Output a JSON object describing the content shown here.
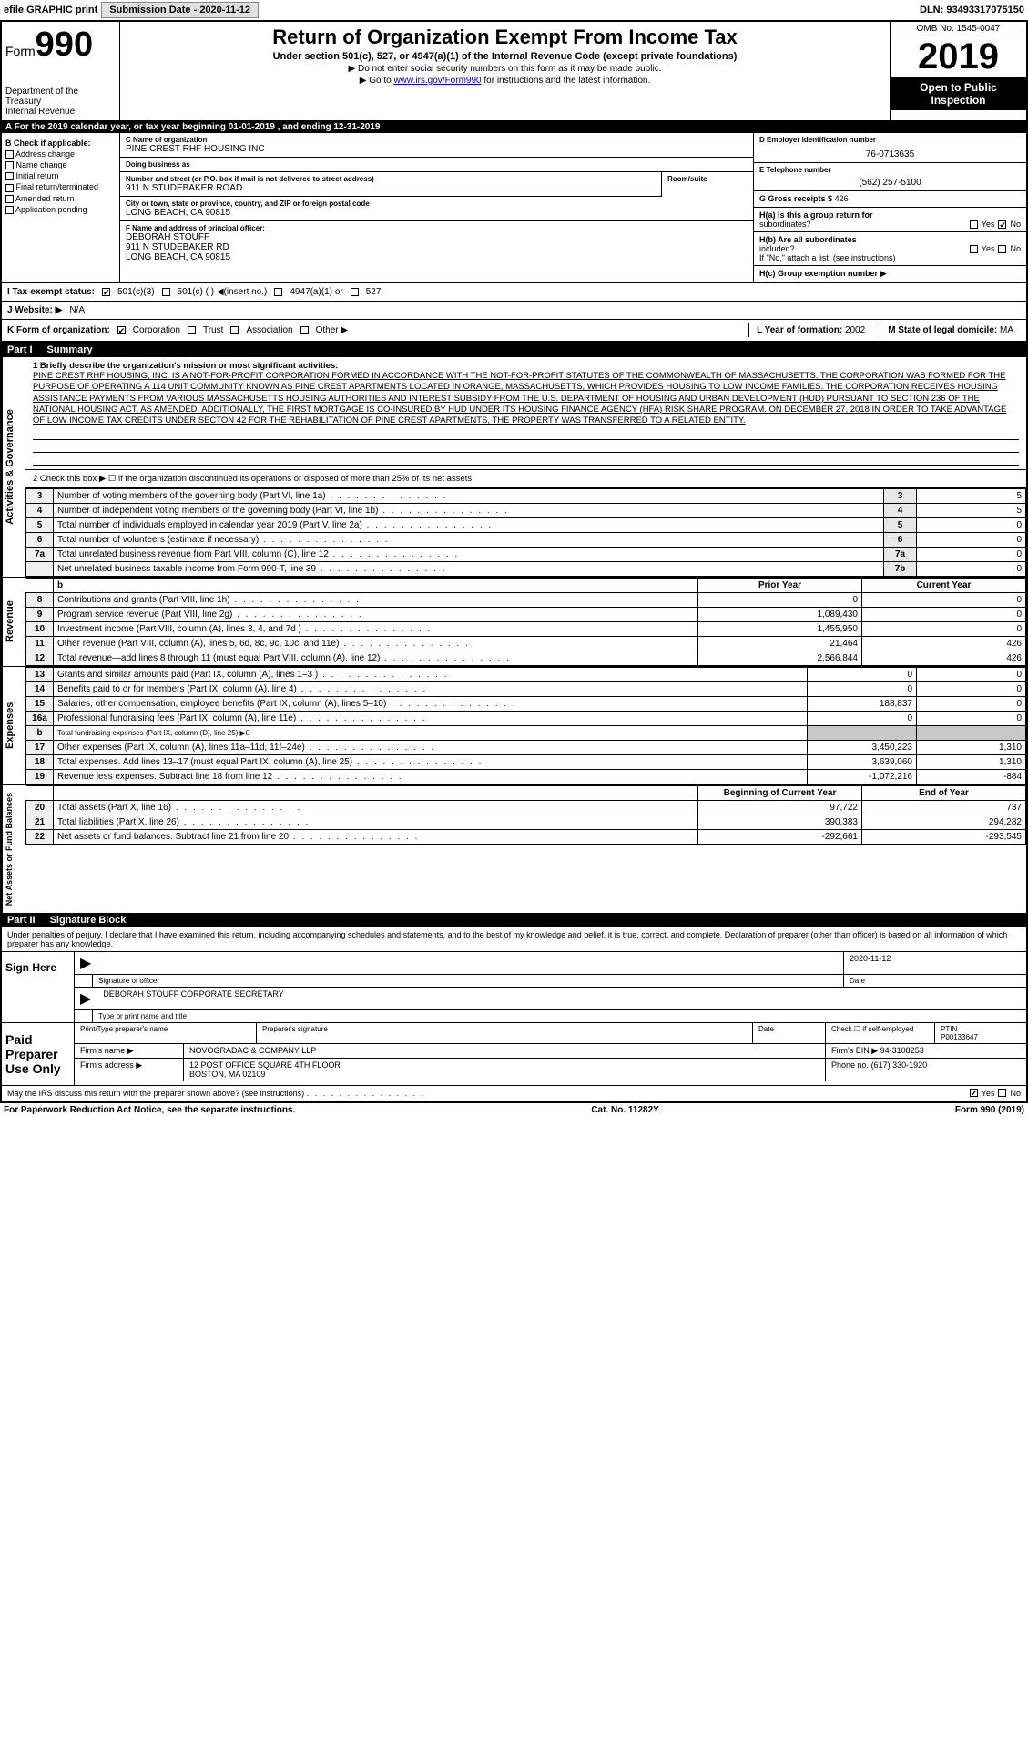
{
  "topbar": {
    "efile": "efile GRAPHIC print",
    "submission_label": "Submission Date - 2020-11-12",
    "dln": "DLN: 93493317075150"
  },
  "header": {
    "form_word": "Form",
    "form_num": "990",
    "dept1": "Department of the",
    "dept2": "Treasury",
    "dept3": "Internal Revenue",
    "title": "Return of Organization Exempt From Income Tax",
    "subtitle": "Under section 501(c), 527, or 4947(a)(1) of the Internal Revenue Code (except private foundations)",
    "note1": "▶ Do not enter social security numbers on this form as it may be made public.",
    "note2_pre": "▶ Go to ",
    "note2_link": "www.irs.gov/Form990",
    "note2_post": " for instructions and the latest information.",
    "omb": "OMB No. 1545-0047",
    "year": "2019",
    "inspect1": "Open to Public",
    "inspect2": "Inspection"
  },
  "taxyear": {
    "text_pre": "A   For the 2019 calendar year, or tax year beginning ",
    "begin": "01-01-2019",
    "mid": " , and ending ",
    "end": "12-31-2019"
  },
  "colB": {
    "title": "B Check if applicable:",
    "opts": [
      "Address change",
      "Name change",
      "Initial return",
      "Final return/terminated",
      "Amended return",
      "Application pending"
    ]
  },
  "colC": {
    "name_lbl": "C Name of organization",
    "name": "PINE CREST RHF HOUSING INC",
    "dba_lbl": "Doing business as",
    "dba": "",
    "addr_lbl": "Number and street (or P.O. box if mail is not delivered to street address)",
    "addr": "911 N STUDEBAKER ROAD",
    "room_lbl": "Room/suite",
    "room": "",
    "city_lbl": "City or town, state or province, country, and ZIP or foreign postal code",
    "city": "LONG BEACH, CA  90815",
    "f_lbl": "F  Name and address of principal officer:",
    "f_name": "DEBORAH STOUFF",
    "f_addr1": "911 N STUDEBAKER RD",
    "f_addr2": "LONG BEACH, CA  90815"
  },
  "colD": {
    "ein_lbl": "D Employer identification number",
    "ein": "76-0713635",
    "tel_lbl": "E Telephone number",
    "tel": "(562) 257-5100",
    "gross_lbl": "G Gross receipts $",
    "gross": "426",
    "ha_lbl": "H(a)  Is this a group return for",
    "ha_sub": "subordinates?",
    "hb_lbl": "H(b)  Are all subordinates",
    "hb_sub": "included?",
    "hb_note": "If \"No,\" attach a list. (see instructions)",
    "hc_lbl": "H(c)  Group exemption number ▶",
    "yes": "Yes",
    "no": "No"
  },
  "rowI": {
    "lbl": "I   Tax-exempt status:",
    "o1": "501(c)(3)",
    "o2": "501(c) (  ) ◀(insert no.)",
    "o3": "4947(a)(1) or",
    "o4": "527"
  },
  "rowJ": {
    "lbl": "J   Website: ▶",
    "val": "N/A"
  },
  "rowK": {
    "lbl": "K Form of organization:",
    "o1": "Corporation",
    "o2": "Trust",
    "o3": "Association",
    "o4": "Other ▶",
    "l_lbl": "L Year of formation:",
    "l_val": "2002",
    "m_lbl": "M State of legal domicile:",
    "m_val": "MA"
  },
  "part1": {
    "header_part": "Part I",
    "header_title": "Summary",
    "line1_lbl": "1   Briefly describe the organization's mission or most significant activities:",
    "mission": "PINE CREST RHF HOUSING, INC. IS A NOT-FOR-PROFIT CORPORATION FORMED IN ACCORDANCE WITH THE NOT-FOR-PROFIT STATUTES OF THE COMMONWEALTH OF MASSACHUSETTS. THE CORPORATION WAS FORMED FOR THE PURPOSE OF OPERATING A 114 UNIT COMMUNITY KNOWN AS PINE CREST APARTMENTS LOCATED IN ORANGE, MASSACHUSETTS, WHICH PROVIDES HOUSING TO LOW INCOME FAMILIES. THE CORPORATION RECEIVES HOUSING ASSISTANCE PAYMENTS FROM VARIOUS MASSACHUSETTS HOUSING AUTHORITIES AND INTEREST SUBSIDY FROM THE U.S. DEPARTMENT OF HOUSING AND URBAN DEVELOPMENT (HUD) PURSUANT TO SECTION 236 OF THE NATIONAL HOUSING ACT, AS AMENDED. ADDITIONALLY, THE FIRST MORTGAGE IS CO-INSURED BY HUD UNDER ITS HOUSING FINANCE AGENCY (HFA) RISK SHARE PROGRAM. ON DECEMBER 27, 2018 IN ORDER TO TAKE ADVANTAGE OF LOW INCOME TAX CREDITS UNDER SECTON 42 FOR THE REHABILITATION OF PINE CREST APARTMENTS, THE PROPERTY WAS TRANSFERRED TO A RELATED ENTITY.",
    "line2": "2   Check this box ▶ ☐ if the organization discontinued its operations or disposed of more than 25% of its net assets.",
    "side_ag": "Activities & Governance",
    "side_rev": "Revenue",
    "side_exp": "Expenses",
    "side_na": "Net Assets or Fund Balances",
    "rows_ag": [
      {
        "n": "3",
        "d": "Number of voting members of the governing body (Part VI, line 1a)",
        "box": "3",
        "v": "5"
      },
      {
        "n": "4",
        "d": "Number of independent voting members of the governing body (Part VI, line 1b)",
        "box": "4",
        "v": "5"
      },
      {
        "n": "5",
        "d": "Total number of individuals employed in calendar year 2019 (Part V, line 2a)",
        "box": "5",
        "v": "0"
      },
      {
        "n": "6",
        "d": "Total number of volunteers (estimate if necessary)",
        "box": "6",
        "v": "0"
      },
      {
        "n": "7a",
        "d": "Total unrelated business revenue from Part VIII, column (C), line 12",
        "box": "7a",
        "v": "0"
      },
      {
        "n": "",
        "d": "Net unrelated business taxable income from Form 990-T, line 39",
        "box": "7b",
        "v": "0"
      }
    ],
    "col_prior": "Prior Year",
    "col_current": "Current Year",
    "rows_rev": [
      {
        "n": "8",
        "d": "Contributions and grants (Part VIII, line 1h)",
        "p": "0",
        "c": "0"
      },
      {
        "n": "9",
        "d": "Program service revenue (Part VIII, line 2g)",
        "p": "1,089,430",
        "c": "0"
      },
      {
        "n": "10",
        "d": "Investment income (Part VIII, column (A), lines 3, 4, and 7d )",
        "p": "1,455,950",
        "c": "0"
      },
      {
        "n": "11",
        "d": "Other revenue (Part VIII, column (A), lines 5, 6d, 8c, 9c, 10c, and 11e)",
        "p": "21,464",
        "c": "426"
      },
      {
        "n": "12",
        "d": "Total revenue—add lines 8 through 11 (must equal Part VIII, column (A), line 12)",
        "p": "2,566,844",
        "c": "426"
      }
    ],
    "rows_exp": [
      {
        "n": "13",
        "d": "Grants and similar amounts paid (Part IX, column (A), lines 1–3 )",
        "p": "0",
        "c": "0"
      },
      {
        "n": "14",
        "d": "Benefits paid to or for members (Part IX, column (A), line 4)",
        "p": "0",
        "c": "0"
      },
      {
        "n": "15",
        "d": "Salaries, other compensation, employee benefits (Part IX, column (A), lines 5–10)",
        "p": "188,837",
        "c": "0"
      },
      {
        "n": "16a",
        "d": "Professional fundraising fees (Part IX, column (A), line 11e)",
        "p": "0",
        "c": "0"
      }
    ],
    "row16b": {
      "n": "b",
      "d": "Total fundraising expenses (Part IX, column (D), line 25) ▶0"
    },
    "rows_exp2": [
      {
        "n": "17",
        "d": "Other expenses (Part IX, column (A), lines 11a–11d, 11f–24e)",
        "p": "3,450,223",
        "c": "1,310"
      },
      {
        "n": "18",
        "d": "Total expenses. Add lines 13–17 (must equal Part IX, column (A), line 25)",
        "p": "3,639,060",
        "c": "1,310"
      },
      {
        "n": "19",
        "d": "Revenue less expenses. Subtract line 18 from line 12",
        "p": "-1,072,216",
        "c": "-884"
      }
    ],
    "col_begin": "Beginning of Current Year",
    "col_end": "End of Year",
    "rows_na": [
      {
        "n": "20",
        "d": "Total assets (Part X, line 16)",
        "p": "97,722",
        "c": "737"
      },
      {
        "n": "21",
        "d": "Total liabilities (Part X, line 26)",
        "p": "390,383",
        "c": "294,282"
      },
      {
        "n": "22",
        "d": "Net assets or fund balances. Subtract line 21 from line 20",
        "p": "-292,661",
        "c": "-293,545"
      }
    ]
  },
  "part2": {
    "header_part": "Part II",
    "header_title": "Signature Block",
    "intro": "Under penalties of perjury, I declare that I have examined this return, including accompanying schedules and statements, and to the best of my knowledge and belief, it is true, correct, and complete. Declaration of preparer (other than officer) is based on all information of which preparer has any knowledge.",
    "sign_here": "Sign Here",
    "sig_officer_lbl": "Signature of officer",
    "sig_date": "2020-11-12",
    "sig_date_lbl": "Date",
    "sig_name": "DEBORAH STOUFF  CORPORATE SECRETARY",
    "sig_name_lbl": "Type or print name and title",
    "paid": "Paid Preparer Use Only",
    "prep_name_lbl": "Print/Type preparer's name",
    "prep_sig_lbl": "Preparer's signature",
    "prep_date_lbl": "Date",
    "prep_self_lbl": "Check ☐ if self-employed",
    "prep_ptin_lbl": "PTIN",
    "prep_ptin": "P00133647",
    "firm_name_lbl": "Firm's name    ▶",
    "firm_name": "NOVOGRADAC & COMPANY LLP",
    "firm_ein_lbl": "Firm's EIN ▶",
    "firm_ein": "94-3108253",
    "firm_addr_lbl": "Firm's address ▶",
    "firm_addr1": "12 POST OFFICE SQUARE 4TH FLOOR",
    "firm_addr2": "BOSTON, MA  02109",
    "firm_phone_lbl": "Phone no.",
    "firm_phone": "(617) 330-1920",
    "discuss": "May the IRS discuss this return with the preparer shown above? (see instructions)",
    "yes": "Yes",
    "no": "No"
  },
  "footer": {
    "left": "For Paperwork Reduction Act Notice, see the separate instructions.",
    "mid": "Cat. No. 11282Y",
    "right": "Form 990 (2019)"
  },
  "colors": {
    "black": "#000000",
    "white": "#ffffff",
    "shade": "#c8c8c8",
    "link": "#0000cc"
  }
}
